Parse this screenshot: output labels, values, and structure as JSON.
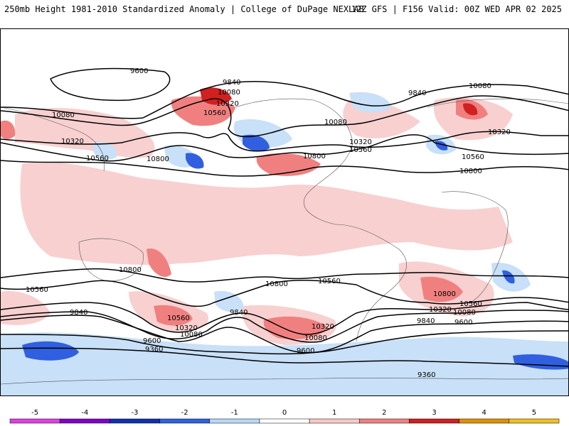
{
  "header": {
    "left_text": "250mb Height 1981-2010 Standardized Anomaly | College of DuPage NEXLAB",
    "right_text": "12Z GFS | F156 Valid: 00Z WED APR 02 2025"
  },
  "contour_labels": [
    {
      "id": "c9600-north",
      "text": "9600"
    },
    {
      "id": "c9840-pacific",
      "text": "9840"
    },
    {
      "id": "c10080-ne-pac",
      "text": "10080"
    },
    {
      "id": "c10320-alaska",
      "text": "10320"
    },
    {
      "id": "c10560-alaska",
      "text": "10560"
    },
    {
      "id": "c9840-atlantic",
      "text": "9840"
    },
    {
      "id": "c10080-europe",
      "text": "10080"
    },
    {
      "id": "c10080-asia",
      "text": "10080"
    },
    {
      "id": "c10320-asia",
      "text": "10320"
    },
    {
      "id": "c10560-asia",
      "text": "10560"
    },
    {
      "id": "c10800-pacific",
      "text": "10800"
    },
    {
      "id": "c10080-na",
      "text": "10080"
    },
    {
      "id": "c10320-na",
      "text": "10320"
    },
    {
      "id": "c10560-na",
      "text": "10560"
    },
    {
      "id": "c10800-na",
      "text": "10800"
    },
    {
      "id": "c10320-eu",
      "text": "10320"
    },
    {
      "id": "c10560-africa",
      "text": "10560"
    },
    {
      "id": "c10800-africa",
      "text": "10800"
    },
    {
      "id": "c10800-sh-pac",
      "text": "10800"
    },
    {
      "id": "c10560-sh-w",
      "text": "10560"
    },
    {
      "id": "c10800-sh-mid",
      "text": "10800"
    },
    {
      "id": "c10560-sh-mid",
      "text": "10560"
    },
    {
      "id": "c9840-sh-w",
      "text": "9840"
    },
    {
      "id": "c10560-nz",
      "text": "10560"
    },
    {
      "id": "c10320-nz",
      "text": "10320"
    },
    {
      "id": "c10080-nz",
      "text": "10080"
    },
    {
      "id": "c9840-sh-c",
      "text": "9840"
    },
    {
      "id": "c10320-sh-c",
      "text": "10320"
    },
    {
      "id": "c10080-sh-c",
      "text": "10080"
    },
    {
      "id": "c9600-sh-w",
      "text": "9600"
    },
    {
      "id": "c9360-sh-w",
      "text": "9360"
    },
    {
      "id": "c9600-sh-c",
      "text": "9600"
    },
    {
      "id": "c10800-sindian",
      "text": "10800"
    },
    {
      "id": "c10320-sindian",
      "text": "10320"
    },
    {
      "id": "c10560-sindian",
      "text": "10560"
    },
    {
      "id": "c10080-sindian",
      "text": "10080"
    },
    {
      "id": "c9840-satl",
      "text": "9840"
    },
    {
      "id": "c9600-satl",
      "text": "9600"
    },
    {
      "id": "c9360-ant",
      "text": "9360"
    }
  ],
  "colorbar": {
    "ticks": [
      "-5",
      "-4",
      "-3",
      "-2",
      "-1",
      "0",
      "1",
      "2",
      "3",
      "4",
      "5"
    ],
    "colors": [
      "#e040e0",
      "#8000c8",
      "#1030b0",
      "#3060e0",
      "#b8d8f8",
      "#ffffff",
      "#f8c8c8",
      "#f08080",
      "#d02020",
      "#e09000",
      "#f0c020"
    ]
  }
}
